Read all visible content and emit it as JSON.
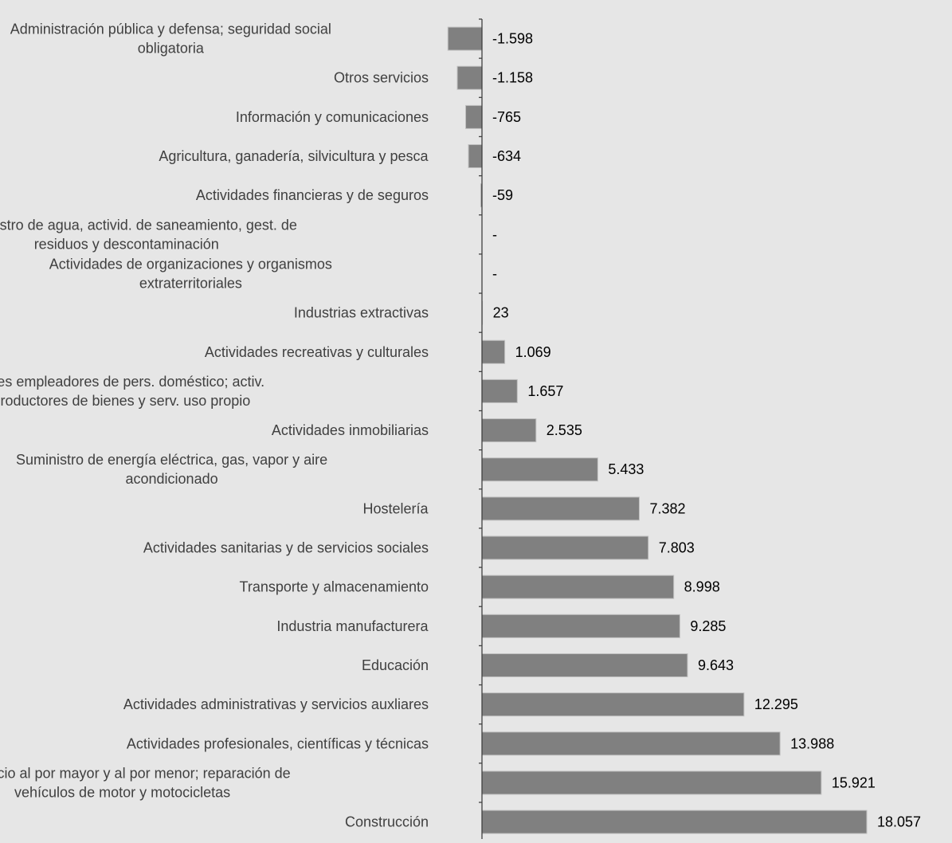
{
  "colors": {
    "background": "#e6e6e6",
    "bar": "#808080",
    "bar_edge": "#bfbfbf",
    "axis": "#404040",
    "category_text": "#404040",
    "value_text": "#000000"
  },
  "chart_data": {
    "type": "bar",
    "orientation": "horizontal",
    "title": "",
    "xlabel": "",
    "ylabel": "",
    "grid": false,
    "legend": "none",
    "xlim": [
      -1598,
      18057
    ],
    "categories": [
      "Administración pública y defensa; seguridad social obligatoria",
      "Otros servicios",
      "Información y comunicaciones",
      "Agricultura, ganadería, silvicultura y pesca",
      "Actividades financieras y de seguros",
      "Suministro de agua, activid. de saneamiento, gest. de residuos y descontaminación",
      "Actividades de organizaciones y organismos extraterritoriales",
      "Industrias extractivas",
      "Actividades recreativas y culturales",
      "Activ. hogares empleadores de pers. doméstico; activ. hogares productores de bienes y serv. uso propio",
      "Actividades inmobiliarias",
      "Suministro de energía eléctrica, gas, vapor y aire acondicionado",
      "Hostelería",
      "Actividades sanitarias y de servicios sociales",
      "Transporte y almacenamiento",
      "Industria manufacturera",
      "Educación",
      "Actividades administrativas y servicios auxliares",
      "Actividades profesionales, científicas y técnicas",
      "Comercio al por mayor y al por menor; reparación de vehículos de motor y motocicletas",
      "Construcción"
    ],
    "category_lines": [
      [
        "Administración pública y defensa; seguridad social",
        "obligatoria"
      ],
      [
        "Otros servicios"
      ],
      [
        "Información y comunicaciones"
      ],
      [
        "Agricultura, ganadería, silvicultura y pesca"
      ],
      [
        "Actividades financieras y de seguros"
      ],
      [
        "Suministro de agua, activid. de saneamiento, gest. de",
        "residuos y descontaminación"
      ],
      [
        "Actividades de organizaciones y organismos",
        "extraterritoriales"
      ],
      [
        "Industrias extractivas"
      ],
      [
        "Actividades recreativas y culturales"
      ],
      [
        "Activ. hogares empleadores de pers. doméstico; activ.",
        "hogares productores de bienes y serv. uso propio"
      ],
      [
        "Actividades inmobiliarias"
      ],
      [
        "Suministro de energía eléctrica, gas, vapor y aire",
        "acondicionado"
      ],
      [
        "Hostelería"
      ],
      [
        "Actividades sanitarias y de servicios sociales"
      ],
      [
        "Transporte y almacenamiento"
      ],
      [
        "Industria manufacturera"
      ],
      [
        "Educación"
      ],
      [
        "Actividades administrativas y servicios auxliares"
      ],
      [
        "Actividades profesionales, científicas y técnicas"
      ],
      [
        "Comercio al por mayor y al por menor; reparación de",
        "vehículos de motor y motocicletas"
      ],
      [
        "Construcción"
      ]
    ],
    "values": [
      -1598,
      -1158,
      -765,
      -634,
      -59,
      0,
      0,
      23,
      1069,
      1657,
      2535,
      5433,
      7382,
      7803,
      8998,
      9285,
      9643,
      12295,
      13988,
      15921,
      18057
    ],
    "data_labels": [
      "-1.598",
      "-1.158",
      "-765",
      "-634",
      "-59",
      "-",
      "-",
      "23",
      "1.069",
      "1.657",
      "2.535",
      "5.433",
      "7.382",
      "7.803",
      "8.998",
      "9.285",
      "9.643",
      "12.295",
      "13.988",
      "15.921",
      "18.057"
    ]
  }
}
